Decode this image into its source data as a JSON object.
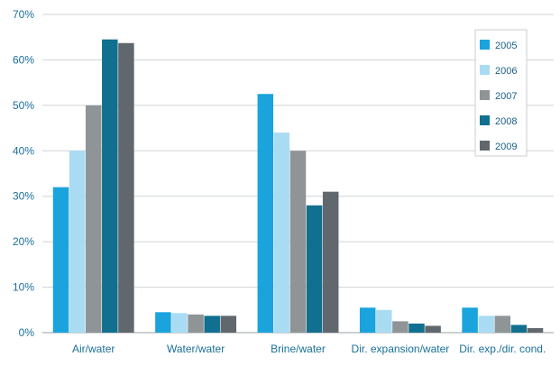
{
  "chart_data": {
    "type": "bar",
    "title": "",
    "xlabel": "",
    "ylabel": "",
    "ylim": [
      0,
      70
    ],
    "ytick_values": [
      0,
      10,
      20,
      30,
      40,
      50,
      60,
      70
    ],
    "ytick_labels": [
      "0%",
      "10%",
      "20%",
      "30%",
      "40%",
      "50%",
      "60%",
      "70%"
    ],
    "grid": "horizontal",
    "legend_position": "top-right",
    "categories": [
      "Air/water",
      "Water/water",
      "Brine/water",
      "Dir. expansion/water",
      "Dir. exp./dir. cond."
    ],
    "series": [
      {
        "name": "2005",
        "color": "#1aa3dd",
        "values": [
          32,
          4.5,
          52.5,
          5.5,
          5.5
        ]
      },
      {
        "name": "2006",
        "color": "#a9dcf3",
        "values": [
          40,
          4.3,
          44,
          5,
          3.7
        ]
      },
      {
        "name": "2007",
        "color": "#8f9497",
        "values": [
          50,
          4,
          40,
          2.5,
          3.7
        ]
      },
      {
        "name": "2008",
        "color": "#11708f",
        "values": [
          64.5,
          3.7,
          28,
          2,
          1.7
        ]
      },
      {
        "name": "2009",
        "color": "#60686e",
        "values": [
          63.7,
          3.7,
          31,
          1.5,
          1
        ]
      }
    ]
  }
}
